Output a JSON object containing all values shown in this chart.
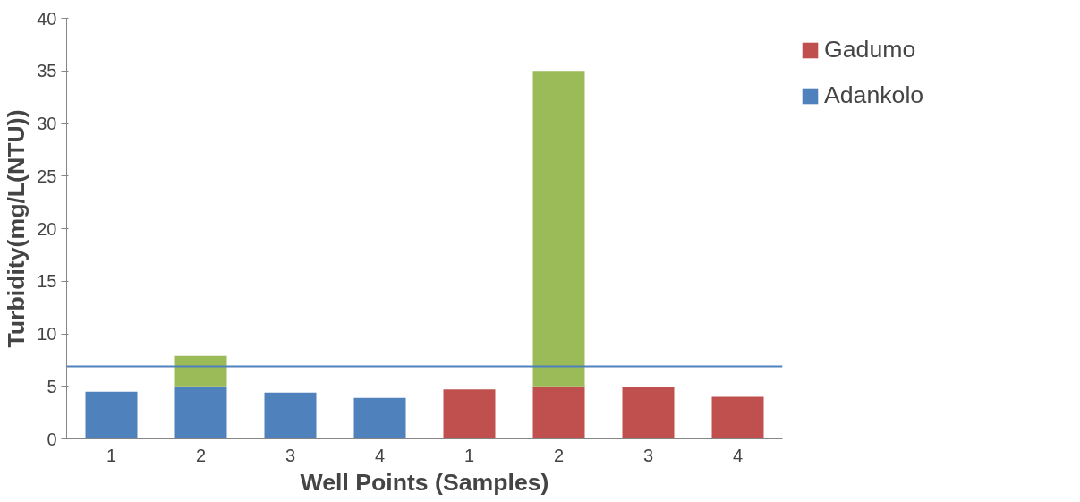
{
  "chart_data": {
    "type": "bar",
    "stacked": true,
    "xlabel": "Well Points (Samples)",
    "ylabel": "Turbidity(mg/L(NTU))",
    "categories": [
      "1",
      "2",
      "3",
      "4",
      "1",
      "2",
      "3",
      "4"
    ],
    "series": [
      {
        "name": "Adankolo",
        "color": "#4f81bd",
        "values": [
          4.5,
          5.0,
          4.4,
          3.9,
          null,
          null,
          null,
          null
        ]
      },
      {
        "name": "Gadumo",
        "color": "#c0504d",
        "values": [
          null,
          null,
          null,
          null,
          4.7,
          5.0,
          4.9,
          4.0
        ]
      },
      {
        "color": "#9bbb59",
        "values": [
          null,
          2.9,
          null,
          null,
          null,
          30,
          null,
          null
        ]
      }
    ],
    "ylim": [
      0,
      40
    ],
    "yticks": [
      0,
      5,
      10,
      15,
      20,
      25,
      30,
      35,
      40
    ],
    "ref_lines": [
      {
        "axis": "y",
        "value": 6.9,
        "color": "#4f81bd"
      }
    ],
    "legend": "right",
    "grid": false
  }
}
